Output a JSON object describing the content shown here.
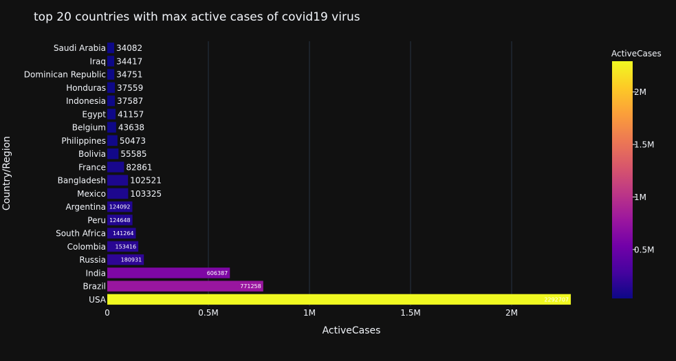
{
  "chart_data": {
    "type": "bar",
    "orientation": "horizontal",
    "title": "top 20 countries with max active cases of covid19 virus",
    "xlabel": "ActiveCases",
    "ylabel": "Country/Region",
    "xlim": [
      0,
      2400000
    ],
    "x_ticks": [
      {
        "value": 0,
        "label": "0"
      },
      {
        "value": 500000,
        "label": "0.5M"
      },
      {
        "value": 1000000,
        "label": "1M"
      },
      {
        "value": 1500000,
        "label": "1.5M"
      },
      {
        "value": 2000000,
        "label": "2M"
      }
    ],
    "grid": true,
    "categories": [
      "Saudi Arabia",
      "Iraq",
      "Dominican Republic",
      "Honduras",
      "Indonesia",
      "Egypt",
      "Belgium",
      "Philippines",
      "Bolivia",
      "France",
      "Bangladesh",
      "Mexico",
      "Argentina",
      "Peru",
      "South Africa",
      "Colombia",
      "Russia",
      "India",
      "Brazil",
      "USA"
    ],
    "values": [
      34082,
      34417,
      34751,
      37559,
      37587,
      41157,
      43638,
      50473,
      55585,
      82861,
      102521,
      103325,
      124092,
      124648,
      141264,
      153416,
      180931,
      606387,
      771258,
      2292707
    ],
    "data_labels": [
      "34082",
      "34417",
      "34751",
      "37559",
      "37587",
      "41157",
      "43638",
      "50473",
      "55585",
      "82861",
      "102521",
      "103325",
      "124092",
      "124648",
      "141264",
      "153416",
      "180931",
      "606387",
      "771258",
      "2292707"
    ],
    "colorbar": {
      "title": "ActiveCases",
      "scale": "plasma",
      "colors": [
        "#0d0887",
        "#46039f",
        "#7201a8",
        "#9c179e",
        "#bd3786",
        "#d8576b",
        "#ed7953",
        "#fb9f3a",
        "#fdca26",
        "#f0f921"
      ],
      "range": [
        34082,
        2292707
      ],
      "ticks": [
        {
          "value": 500000,
          "label": "0.5M"
        },
        {
          "value": 1000000,
          "label": "1M"
        },
        {
          "value": 1500000,
          "label": "1.5M"
        },
        {
          "value": 2000000,
          "label": "2M"
        }
      ]
    },
    "background_color": "#111111",
    "grid_color": "#283442",
    "text_color": "#f2f5fa"
  }
}
